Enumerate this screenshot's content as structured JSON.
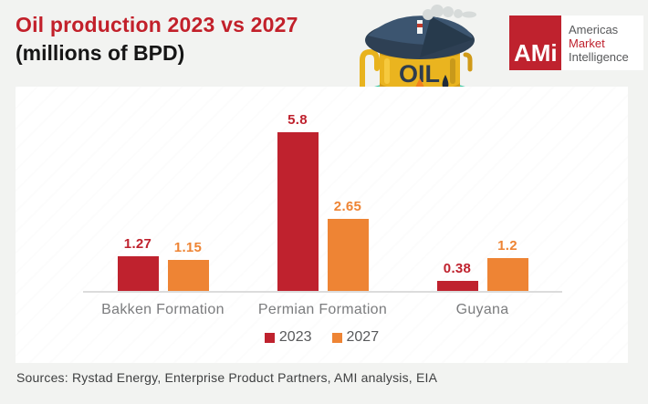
{
  "page": {
    "background": "#f2f3f1",
    "card_color": "#ffffff"
  },
  "header": {
    "title_line1": "Oil production 2023 vs 2027",
    "title_line2": "(millions of BPD)",
    "title_color": "#c2202a"
  },
  "logo": {
    "monogram": "AMi",
    "box_color": "#bf222e",
    "lines": [
      "Americas",
      "Market",
      "Intelligence"
    ],
    "market_color": "#bf222e",
    "text_color": "#58595b"
  },
  "illustration": {
    "name": "oil-barrel",
    "barrel_label": "OIL"
  },
  "chart_data": {
    "type": "bar",
    "categories": [
      "Bakken Formation",
      "Permian Formation",
      "Guyana"
    ],
    "series": [
      {
        "name": "2023",
        "color": "#bf222e",
        "values": [
          1.27,
          5.8,
          0.38
        ]
      },
      {
        "name": "2027",
        "color": "#ee8434",
        "values": [
          1.15,
          2.65,
          1.2
        ]
      }
    ],
    "title": "Oil production 2023 vs 2027 (millions of BPD)",
    "ylabel": "millions of BPD",
    "ylim": [
      0,
      6
    ],
    "grid": false,
    "legend_position": "bottom",
    "axis_line_color": "#dcdcdc",
    "category_label_color": "#7b7c7e"
  },
  "footer": {
    "sources": "Sources: Rystad Energy, Enterprise Product Partners, AMI analysis, EIA"
  }
}
